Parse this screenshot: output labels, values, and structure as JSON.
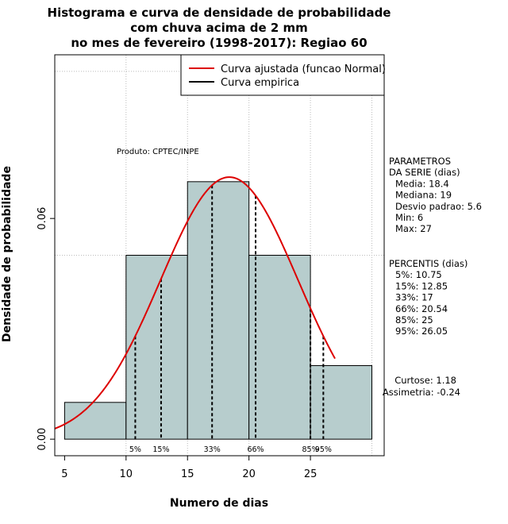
{
  "chart_data": {
    "type": "bar",
    "title_lines": [
      "Histograma e curva de densidade de probabilidade",
      "com chuva acima de 2 mm",
      "no mes de fevereiro (1998-2017): Regiao 60"
    ],
    "xlabel": "Numero de dias",
    "ylabel": "Densidade de probabilidade",
    "xlim": [
      4.2,
      31
    ],
    "ylim": [
      -0.0045,
      0.1045
    ],
    "x_ticks": [
      5,
      10,
      15,
      20,
      25
    ],
    "x_tick_labels": [
      "5",
      "10",
      "15",
      "20",
      "25"
    ],
    "y_ticks": [
      0.0,
      0.06
    ],
    "y_tick_labels": [
      "0.00",
      "0.06"
    ],
    "grid_x": [
      10,
      15,
      20,
      25,
      30
    ],
    "grid_y": [
      0.05,
      0.1
    ],
    "bins": [
      {
        "start": 5,
        "end": 10,
        "density": 0.01
      },
      {
        "start": 10,
        "end": 15,
        "density": 0.05
      },
      {
        "start": 15,
        "end": 20,
        "density": 0.07
      },
      {
        "start": 20,
        "end": 25,
        "density": 0.05
      },
      {
        "start": 25,
        "end": 30,
        "density": 0.02
      }
    ],
    "normal_curve": {
      "mean": 18.4,
      "sd": 5.6,
      "x_range": [
        4.2,
        27
      ]
    },
    "percentile_lines": [
      {
        "label": "5%",
        "x": 10.75
      },
      {
        "label": "15%",
        "x": 12.85
      },
      {
        "label": "33%",
        "x": 17
      },
      {
        "label": "66%",
        "x": 20.54
      },
      {
        "label": "85%",
        "x": 25
      },
      {
        "label": "95%",
        "x": 26.05
      }
    ],
    "legend": [
      {
        "label": "Curva ajustada (funcao Normal)",
        "color": "#dd0000"
      },
      {
        "label": "Curva empirica",
        "color": "#000000"
      }
    ],
    "legend_position": "top-right",
    "annotation": "Produto: CPTEC/INPE",
    "parametros": {
      "heading": [
        "PARAMETROS",
        "DA SERIE (dias)"
      ],
      "lines": [
        "Media: 18.4",
        "Mediana: 19",
        "Desvio padrao: 5.6",
        "Min: 6",
        "Max: 27"
      ]
    },
    "percentis": {
      "heading": "PERCENTIS (dias)",
      "lines": [
        "5%: 10.75",
        "15%: 12.85",
        "33%: 17",
        "66%: 20.54",
        "85%: 25",
        "95%: 26.05"
      ]
    },
    "shape": [
      "Curtose: 1.18",
      "Assimetria: -0.24"
    ]
  },
  "colors": {
    "bar_fill": "#b7cdcd",
    "bar_stroke": "#000000",
    "curve": "#dd0000",
    "grid": "#bbbbbb"
  }
}
